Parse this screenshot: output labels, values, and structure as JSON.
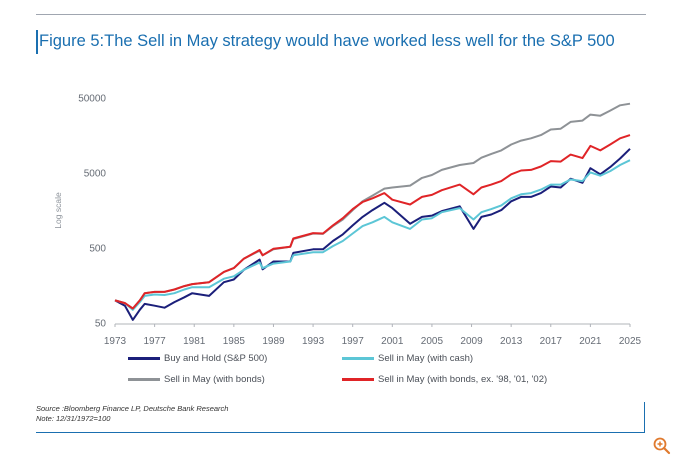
{
  "title": "Figure 5:The Sell in May strategy would have worked less well for the S&P 500",
  "source_line1": "Source :Bloomberg Finance LP, Deutsche Bank Research",
  "source_line2": "Note: 12/31/1972=100",
  "colors": {
    "title": "#1a6fb0",
    "frame": "#1a6fb0",
    "buy_and_hold": "#1b1f7a",
    "sell_cash": "#5cc6d6",
    "sell_bonds": "#8e9296",
    "sell_bonds_ex": "#e02427"
  },
  "icons": {
    "zoom": "zoom-in-icon"
  },
  "chart_data": {
    "type": "line",
    "title": "Figure 5:The Sell in May strategy would have worked less well for the S&P 500",
    "xlabel": "",
    "ylabel": "Log scale",
    "yscale": "log",
    "ylim": [
      50,
      50000
    ],
    "xlim": [
      1973,
      2025
    ],
    "x_ticks": [
      "1973",
      "1977",
      "1981",
      "1985",
      "1989",
      "1993",
      "1997",
      "2001",
      "2005",
      "2009",
      "2013",
      "2017",
      "2021",
      "2025"
    ],
    "y_ticks": [
      "50",
      "500",
      "5000",
      "50000"
    ],
    "y_tick_values": [
      50,
      500,
      5000,
      50000
    ],
    "legend_position": "bottom",
    "series": [
      {
        "name": "Buy and Hold (S&P 500)",
        "color": "#1b1f7a",
        "x": [
          1973,
          1974,
          1974.8,
          1975.5,
          1976,
          1977,
          1978,
          1979,
          1980,
          1980.8,
          1982.5,
          1984,
          1985,
          1986,
          1987.6,
          1987.9,
          1989,
          1990.7,
          1991,
          1993,
          1994,
          1995,
          1996,
          1997,
          1998,
          1999,
          2000.2,
          2001,
          2002.8,
          2004,
          2005,
          2006,
          2007.8,
          2009.2,
          2010,
          2011,
          2012,
          2013,
          2014,
          2015,
          2016,
          2017,
          2018,
          2019,
          2020.2,
          2021,
          2022,
          2023,
          2024,
          2025
        ],
        "y": [
          100,
          85,
          55,
          75,
          90,
          85,
          80,
          95,
          110,
          125,
          115,
          175,
          190,
          255,
          350,
          260,
          330,
          330,
          430,
          480,
          480,
          620,
          760,
          1000,
          1300,
          1600,
          2000,
          1700,
          1050,
          1300,
          1350,
          1550,
          1800,
          900,
          1300,
          1400,
          1600,
          2100,
          2400,
          2400,
          2700,
          3300,
          3200,
          4200,
          3700,
          5800,
          4800,
          6000,
          7800,
          10500
        ]
      },
      {
        "name": "Sell in May (with cash)",
        "color": "#5cc6d6",
        "x": [
          1973,
          1974,
          1974.8,
          1975.5,
          1976,
          1977,
          1978,
          1979,
          1980,
          1980.8,
          1982.5,
          1984,
          1985,
          1986,
          1987.6,
          1987.9,
          1989,
          1990.7,
          1991,
          1993,
          1994,
          1995,
          1996,
          1997,
          1998,
          1999,
          2000.2,
          2001,
          2002.8,
          2004,
          2005,
          2006,
          2007.8,
          2009.2,
          2010,
          2011,
          2012,
          2013,
          2014,
          2015,
          2016,
          2017,
          2018,
          2019,
          2020.2,
          2021,
          2022,
          2023,
          2024,
          2025
        ],
        "y": [
          100,
          92,
          75,
          95,
          115,
          120,
          118,
          125,
          140,
          150,
          150,
          195,
          210,
          255,
          320,
          270,
          310,
          330,
          400,
          440,
          440,
          530,
          620,
          780,
          980,
          1100,
          1300,
          1100,
          900,
          1200,
          1250,
          1500,
          1700,
          1200,
          1500,
          1650,
          1850,
          2300,
          2600,
          2700,
          3000,
          3500,
          3500,
          4100,
          3900,
          5100,
          4600,
          5300,
          6400,
          7400
        ]
      },
      {
        "name": "Sell in May (with bonds)",
        "color": "#8e9296",
        "x": [
          1973,
          1974,
          1974.8,
          1975.5,
          1976,
          1977,
          1978,
          1979,
          1980,
          1980.8,
          1982.5,
          1984,
          1985,
          1986,
          1987.6,
          1987.9,
          1989,
          1990.7,
          1991,
          1993,
          1994,
          1995,
          1996,
          1997,
          1998,
          1999,
          2000.2,
          2001,
          2002.8,
          2004,
          2005,
          2006,
          2007.8,
          2009.2,
          2010,
          2011,
          2012,
          2013,
          2014,
          2015,
          2016,
          2017,
          2018,
          2019,
          2020.2,
          2021,
          2022,
          2023,
          2024,
          2025
        ],
        "y": [
          100,
          92,
          78,
          100,
          125,
          130,
          130,
          140,
          155,
          165,
          175,
          240,
          270,
          360,
          460,
          400,
          480,
          520,
          660,
          780,
          770,
          980,
          1200,
          1600,
          2100,
          2500,
          3100,
          3200,
          3400,
          4300,
          4700,
          5500,
          6400,
          6800,
          8000,
          9000,
          10000,
          12000,
          13500,
          14500,
          16000,
          19000,
          19500,
          24000,
          25000,
          30000,
          29000,
          34000,
          40000,
          42000
        ]
      },
      {
        "name": "Sell in May (with bonds, ex. '98, '01, '02)",
        "color": "#e02427",
        "x": [
          1973,
          1974,
          1974.8,
          1975.5,
          1976,
          1977,
          1978,
          1979,
          1980,
          1980.8,
          1982.5,
          1984,
          1985,
          1986,
          1987.6,
          1987.9,
          1989,
          1990.7,
          1991,
          1993,
          1994,
          1995,
          1996,
          1997,
          1998,
          1999,
          2000.2,
          2001,
          2002.8,
          2004,
          2005,
          2006,
          2007.8,
          2009.2,
          2010,
          2011,
          2012,
          2013,
          2014,
          2015,
          2016,
          2017,
          2018,
          2019,
          2020.2,
          2021,
          2022,
          2023,
          2024,
          2025
        ],
        "y": [
          100,
          92,
          78,
          100,
          125,
          130,
          130,
          140,
          155,
          165,
          175,
          240,
          270,
          360,
          470,
          400,
          490,
          520,
          670,
          790,
          780,
          1000,
          1250,
          1650,
          2050,
          2300,
          2700,
          2200,
          1900,
          2400,
          2550,
          2950,
          3500,
          2600,
          3200,
          3500,
          3900,
          4800,
          5400,
          5500,
          6100,
          7200,
          7100,
          8800,
          7900,
          11500,
          10000,
          12000,
          14500,
          16000
        ]
      }
    ]
  }
}
